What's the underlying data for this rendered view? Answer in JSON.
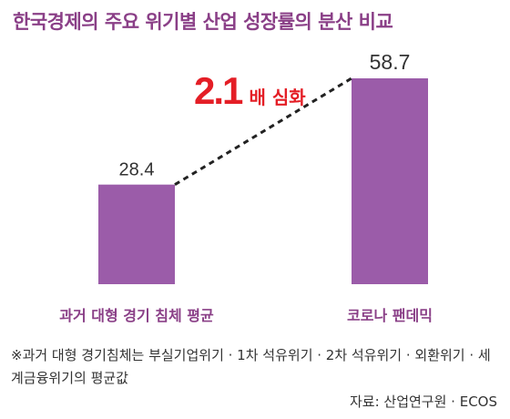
{
  "title": "한국경제의 주요 위기별 산업 성장률의 분산 비교",
  "colors": {
    "bar": "#9b5ca9",
    "title": "#8a3f87",
    "accent": "#e41e26",
    "category": "#8a3f87",
    "value": "#333333"
  },
  "annotation": {
    "number": "2.1",
    "suffix": "배 심화"
  },
  "note": "※과거 대형 경기침체는 부실기업위기 · 1차 석유위기 · 2차 석유위기 · 외환위기 · 세계금융위기의 평균값",
  "source": "자료: 산업연구원 · ECOS",
  "chart_data": {
    "type": "bar",
    "categories": [
      "과거 대형 경기 침체 평균",
      "코로나 팬데믹"
    ],
    "values": [
      28.4,
      58.7
    ],
    "value_labels": [
      "28.4",
      "58.7"
    ],
    "title": "한국경제의 주요 위기별 산업 성장률의 분산 비교",
    "xlabel": "",
    "ylabel": "",
    "ylim": [
      0,
      58.7
    ],
    "grid": false,
    "connector": "dashed line between bar tops"
  }
}
